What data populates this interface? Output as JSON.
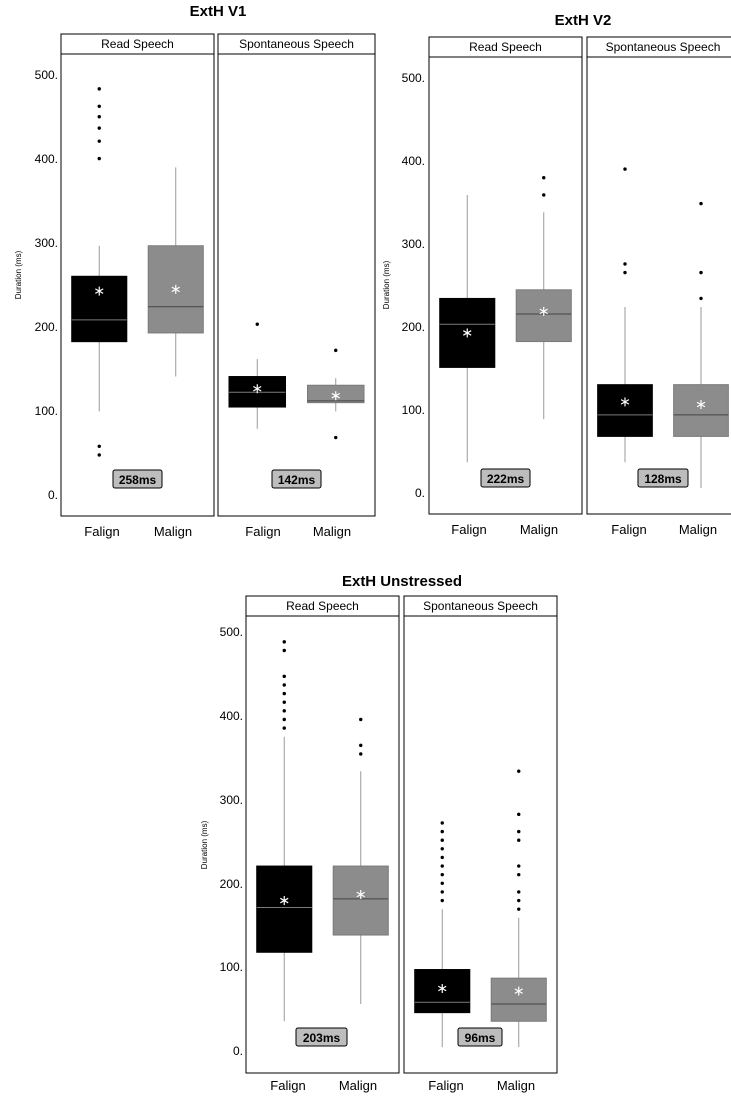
{
  "chart_data": [
    {
      "type": "box",
      "title": "ExtH V1",
      "ylabel": "Duration (ms)",
      "ylim": [
        0,
        530
      ],
      "yticks": [
        0,
        100,
        200,
        300,
        400,
        500
      ],
      "ytick_labels": [
        "0.",
        "100.",
        "200.",
        "300.",
        "400.",
        "500."
      ],
      "categories": [
        "Falign",
        "Malign"
      ],
      "panels": [
        {
          "label": "Read Speech",
          "mean_label": "258ms",
          "boxes": [
            {
              "category": "Falign",
              "color": "#000000",
              "whisker_low": 120,
              "q1": 200,
              "median": 225,
              "q3": 275,
              "whisker_high": 310,
              "mean": 258,
              "outliers": [
                70,
                80,
                410,
                430,
                445,
                458,
                470,
                490
              ]
            },
            {
              "category": "Malign",
              "color": "#8c8c8c",
              "whisker_low": 160,
              "q1": 210,
              "median": 240,
              "q3": 310,
              "whisker_high": 400,
              "mean": 260,
              "outliers": []
            }
          ]
        },
        {
          "label": "Spontaneous Speech",
          "mean_label": "142ms",
          "boxes": [
            {
              "category": "Falign",
              "color": "#000000",
              "whisker_low": 100,
              "q1": 125,
              "median": 142,
              "q3": 160,
              "whisker_high": 180,
              "mean": 146,
              "outliers": [
                220
              ]
            },
            {
              "category": "Malign",
              "color": "#8c8c8c",
              "whisker_low": 120,
              "q1": 130,
              "median": 132,
              "q3": 150,
              "whisker_high": 158,
              "mean": 138,
              "outliers": [
                90,
                190
              ]
            }
          ]
        }
      ]
    },
    {
      "type": "box",
      "title": "ExtH V2",
      "ylabel": "Duration (ms)",
      "ylim": [
        0,
        530
      ],
      "yticks": [
        0,
        100,
        200,
        300,
        400,
        500
      ],
      "ytick_labels": [
        "0.",
        "100.",
        "200.",
        "300.",
        "400.",
        "500."
      ],
      "categories": [
        "Falign",
        "Malign"
      ],
      "panels": [
        {
          "label": "Read Speech",
          "mean_label": "222ms",
          "boxes": [
            {
              "category": "Falign",
              "color": "#000000",
              "whisker_low": 60,
              "q1": 170,
              "median": 220,
              "q3": 250,
              "whisker_high": 370,
              "mean": 210,
              "outliers": []
            },
            {
              "category": "Malign",
              "color": "#8c8c8c",
              "whisker_low": 110,
              "q1": 200,
              "median": 232,
              "q3": 260,
              "whisker_high": 350,
              "mean": 235,
              "outliers": [
                370,
                390
              ]
            }
          ]
        },
        {
          "label": "Spontaneous Speech",
          "mean_label": "128ms",
          "boxes": [
            {
              "category": "Falign",
              "color": "#000000",
              "whisker_low": 60,
              "q1": 90,
              "median": 115,
              "q3": 150,
              "whisker_high": 240,
              "mean": 130,
              "outliers": [
                280,
                290,
                400
              ]
            },
            {
              "category": "Malign",
              "color": "#8c8c8c",
              "whisker_low": 30,
              "q1": 90,
              "median": 115,
              "q3": 150,
              "whisker_high": 240,
              "mean": 127,
              "outliers": [
                250,
                280,
                360
              ]
            }
          ]
        }
      ]
    },
    {
      "type": "box",
      "title": "ExtH Unstressed",
      "ylabel": "Duration (ms)",
      "ylim": [
        0,
        530
      ],
      "yticks": [
        0,
        100,
        200,
        300,
        400,
        500
      ],
      "ytick_labels": [
        "0.",
        "100.",
        "200.",
        "300.",
        "400.",
        "500."
      ],
      "categories": [
        "Falign",
        "Malign"
      ],
      "panels": [
        {
          "label": "Read Speech",
          "mean_label": "203ms",
          "boxes": [
            {
              "category": "Falign",
              "color": "#000000",
              "whisker_low": 60,
              "q1": 140,
              "median": 192,
              "q3": 240,
              "whisker_high": 390,
              "mean": 200,
              "outliers": [
                400,
                410,
                420,
                430,
                440,
                450,
                460,
                490,
                500
              ]
            },
            {
              "category": "Malign",
              "color": "#8c8c8c",
              "whisker_low": 80,
              "q1": 160,
              "median": 202,
              "q3": 240,
              "whisker_high": 350,
              "mean": 207,
              "outliers": [
                370,
                380,
                410
              ]
            }
          ]
        },
        {
          "label": "Spontaneous Speech",
          "mean_label": "96ms",
          "boxes": [
            {
              "category": "Falign",
              "color": "#000000",
              "whisker_low": 30,
              "q1": 70,
              "median": 82,
              "q3": 120,
              "whisker_high": 190,
              "mean": 98,
              "outliers": [
                200,
                210,
                220,
                230,
                240,
                250,
                260,
                270,
                280,
                290
              ]
            },
            {
              "category": "Malign",
              "color": "#8c8c8c",
              "whisker_low": 30,
              "q1": 60,
              "median": 80,
              "q3": 110,
              "whisker_high": 180,
              "mean": 95,
              "outliers": [
                190,
                200,
                210,
                230,
                240,
                270,
                280,
                300,
                350
              ]
            }
          ]
        }
      ]
    }
  ]
}
